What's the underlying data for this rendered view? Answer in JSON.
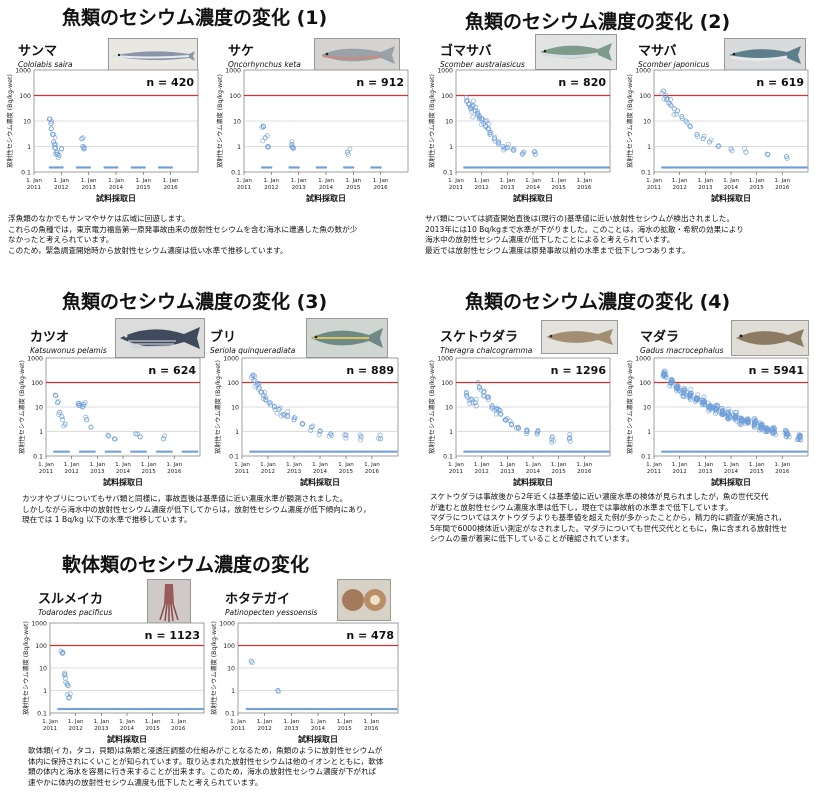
{
  "sections": [
    {
      "title": "魚類のセシウム濃度の変化 (1)",
      "desc": [
        "浮魚類のなかでもサンマやサケは広域に回遊します。",
        "これらの魚種では，東京電力福島第一原発事故由来の放射性セシウムを含む海水に遭遇した魚の数が少",
        "なかったと考えられています。",
        "このため，緊急調査開始時から放射性セシウム濃度は低い水準で推移しています。"
      ]
    },
    {
      "title": "魚類のセシウム濃度の変化 (2)",
      "desc": [
        "サバ類については調査開始直後は(現行の)基準値に近い放射性セシウムが検出されました。",
        "2013年には10 Bq/kgまで水準が下がりました。このことは，海水の拡散・希釈の効果により",
        "海水中の放射性セシウム濃度が低下したことによると考えられています。",
        "最近では放射性セシウム濃度は原発事故以前の水準まで低下しつつあります。"
      ]
    },
    {
      "title": "魚類のセシウム濃度の変化 (3)",
      "desc": [
        "カツオやブリについてもサバ類と同様に，事故直後は基準値に近い濃度水準が観測されました。",
        "しかしながら海水中の放射性セシウム濃度が低下してからは，放射性セシウム濃度が低下傾向にあり，",
        "現在では 1 Bq/kg 以下の水準で推移しています。"
      ]
    },
    {
      "title": "魚類のセシウム濃度の変化 (4)",
      "desc": [
        "スケトウダラは事故後から2年近くは基準値に近い濃度水準の検体が見られましたが，魚の世代交代",
        "が進むと放射性セシウム濃度水準は低下し，現在では事故前の水準まで低下しています。",
        "マダラについてはスケトウダラよりも基準値を超えた例が多かったことから，精力的に調査が実施され，",
        "5年間で6000検体近い測定がなされました。マダラについても世代交代とともに，魚に含まれる放射性セ",
        "シウムの量が着実に低下していることが確認されています。"
      ]
    },
    {
      "title": "軟体類のセシウム濃度の変化",
      "desc": [
        "軟体類(イカ，タコ，貝類)は魚類と浸透圧調整の仕組みがことなるため，魚類のように放射性セシウムが",
        "体内に保持されにくいことが知られています。取り込まれた放射性セシウムは他のイオンとともに，軟体",
        "類の体内と海水を容易に行き来することが出来ます。このため，海水の放射性セシウム濃度が下がれば",
        "速やかに体内の放射性セシウム濃度も低下したと考えられています。"
      ]
    }
  ],
  "species": [
    {
      "name": "サンマ",
      "sci": "Cololabis saira"
    },
    {
      "name": "サケ",
      "sci": "Oncorhynchus keta"
    },
    {
      "name": "ゴマサバ",
      "sci": "Scomber australasicus"
    },
    {
      "name": "マサバ",
      "sci": "Scomber japonicus"
    },
    {
      "name": "カツオ",
      "sci": "Katsuwonus pelamis"
    },
    {
      "name": "ブリ",
      "sci": "Seriola quinqueradiata"
    },
    {
      "name": "スケトウダラ",
      "sci": "Theragra chalcogramma"
    },
    {
      "name": "マダラ",
      "sci": "Gadus macrocephalus"
    },
    {
      "name": "スルメイカ",
      "sci": "Todarodes pacificus"
    },
    {
      "name": "ホタテガイ",
      "sci": "Patinopecten yessoensis"
    }
  ],
  "axes": {
    "ylabel": "放射性セシウム濃度 (Bq/kg-wet)",
    "xlabel": "試料採取日",
    "yticks": [
      "1000",
      "100",
      "10",
      "1",
      "0.1"
    ],
    "xticks": [
      "1. Jan 2011",
      "1. Jan 2012",
      "1. Jan 2013",
      "1. Jan 2014",
      "1. Jan 2015",
      "1. Jan 2016"
    ]
  },
  "colors": {
    "points": "#6f9fd8",
    "limit_line": "#d03030",
    "grid": "#d0d0d0"
  },
  "chart_data": [
    {
      "type": "scatter",
      "species": "サンマ",
      "n_label": "n = 420",
      "n": 420,
      "ylim": [
        0.1,
        1000
      ],
      "yscale": "log",
      "xlim": [
        "2011-01-01",
        "2017-01-01"
      ],
      "reference_line": 100,
      "points": [
        [
          "2011-08-01",
          12
        ],
        [
          "2011-08-15",
          8
        ],
        [
          "2011-08-20",
          5
        ],
        [
          "2011-09-05",
          3
        ],
        [
          "2011-09-20",
          1.5
        ],
        [
          "2011-10-01",
          1.2
        ],
        [
          "2011-10-15",
          0.9
        ],
        [
          "2011-11-01",
          0.6
        ],
        [
          "2011-11-10",
          0.5
        ],
        [
          "2011-12-01",
          0.45
        ],
        [
          "2012-01-05",
          0.8
        ],
        [
          "2012-10-01",
          2
        ],
        [
          "2012-10-15",
          1
        ],
        [
          "2012-11-01",
          0.8
        ]
      ],
      "detection_floor": {
        "value": 0.15,
        "ranges": [
          [
            "2011-08-01",
            "2012-02-01"
          ],
          [
            "2012-08-01",
            "2013-02-01"
          ],
          [
            "2013-08-01",
            "2014-02-01"
          ],
          [
            "2014-08-01",
            "2015-02-01"
          ],
          [
            "2015-08-01",
            "2016-02-01"
          ]
        ]
      }
    },
    {
      "type": "scatter",
      "species": "サケ",
      "n_label": "n = 912",
      "n": 912,
      "ylim": [
        0.1,
        1000
      ],
      "yscale": "log",
      "xlim": [
        "2011-01-01",
        "2017-01-01"
      ],
      "reference_line": 100,
      "points": [
        [
          "2011-09-20",
          6
        ],
        [
          "2011-10-10",
          2.2
        ],
        [
          "2011-11-15",
          1.0
        ],
        [
          "2012-10-01",
          1.2
        ],
        [
          "2012-10-20",
          0.9
        ],
        [
          "2014-10-15",
          0.6
        ]
      ],
      "detection_floor": {
        "value": 0.15,
        "ranges": [
          [
            "2011-09-01",
            "2012-01-15"
          ],
          [
            "2012-09-01",
            "2013-01-15"
          ],
          [
            "2013-09-01",
            "2014-01-15"
          ],
          [
            "2014-09-01",
            "2015-01-15"
          ],
          [
            "2015-09-01",
            "2016-01-15"
          ]
        ]
      }
    },
    {
      "type": "scatter",
      "species": "ゴマサバ",
      "n_label": "n = 820",
      "n": 820,
      "ylim": [
        0.1,
        1000
      ],
      "yscale": "log",
      "xlim": [
        "2011-01-01",
        "2017-01-01"
      ],
      "reference_line": 100,
      "points": [
        [
          "2011-06-01",
          60
        ],
        [
          "2011-07-01",
          45
        ],
        [
          "2011-08-01",
          30
        ],
        [
          "2011-09-01",
          40
        ],
        [
          "2011-10-01",
          25
        ],
        [
          "2011-11-01",
          20
        ],
        [
          "2011-12-01",
          15
        ],
        [
          "2012-01-01",
          12
        ],
        [
          "2012-02-01",
          8
        ],
        [
          "2012-03-01",
          6
        ],
        [
          "2012-04-01",
          5
        ],
        [
          "2012-05-01",
          3
        ],
        [
          "2012-07-01",
          2
        ],
        [
          "2012-09-01",
          1.5
        ],
        [
          "2012-11-01",
          1
        ],
        [
          "2013-01-01",
          0.9
        ],
        [
          "2013-04-01",
          0.7
        ],
        [
          "2013-08-01",
          0.5
        ],
        [
          "2014-02-01",
          0.5
        ]
      ],
      "detection_floor": {
        "value": 0.15,
        "ranges": [
          [
            "2011-05-01",
            "2016-12-15"
          ]
        ]
      }
    },
    {
      "type": "scatter",
      "species": "マサバ",
      "n_label": "n = 619",
      "n": 619,
      "ylim": [
        0.1,
        1000
      ],
      "yscale": "log",
      "xlim": [
        "2011-01-01",
        "2017-01-01"
      ],
      "reference_line": 100,
      "points": [
        [
          "2011-05-15",
          150
        ],
        [
          "2011-06-15",
          100
        ],
        [
          "2011-07-01",
          70
        ],
        [
          "2011-08-01",
          50
        ],
        [
          "2011-09-01",
          40
        ],
        [
          "2011-10-15",
          30
        ],
        [
          "2011-12-01",
          25
        ],
        [
          "2012-02-01",
          15
        ],
        [
          "2012-04-01",
          10
        ],
        [
          "2012-06-01",
          6
        ],
        [
          "2012-09-01",
          3
        ],
        [
          "2012-12-01",
          2
        ],
        [
          "2013-03-01",
          1.5
        ],
        [
          "2013-07-01",
          1
        ],
        [
          "2014-01-01",
          0.8
        ],
        [
          "2014-08-01",
          0.6
        ],
        [
          "2015-06-01",
          0.5
        ],
        [
          "2016-03-01",
          0.4
        ]
      ],
      "detection_floor": {
        "value": 0.15,
        "ranges": [
          [
            "2011-05-01",
            "2016-12-15"
          ]
        ]
      }
    },
    {
      "type": "scatter",
      "species": "カツオ",
      "n_label": "n = 624",
      "n": 624,
      "ylim": [
        0.1,
        1000
      ],
      "yscale": "log",
      "xlim": [
        "2011-01-01",
        "2017-01-01"
      ],
      "reference_line": 100,
      "points": [
        [
          "2011-05-15",
          30
        ],
        [
          "2011-06-15",
          15
        ],
        [
          "2011-07-15",
          6
        ],
        [
          "2011-08-15",
          4
        ],
        [
          "2011-10-01",
          2
        ],
        [
          "2012-04-15",
          14
        ],
        [
          "2012-05-01",
          12
        ],
        [
          "2012-06-01",
          10
        ],
        [
          "2012-06-20",
          13
        ],
        [
          "2012-08-01",
          3
        ],
        [
          "2012-10-01",
          1.5
        ],
        [
          "2013-06-01",
          0.7
        ],
        [
          "2013-09-01",
          0.5
        ],
        [
          "2014-07-01",
          0.8
        ],
        [
          "2014-09-01",
          0.6
        ],
        [
          "2015-08-01",
          0.5
        ]
      ],
      "detection_floor": {
        "value": 0.15,
        "ranges": [
          [
            "2011-05-01",
            "2011-12-01"
          ],
          [
            "2012-05-01",
            "2012-12-01"
          ],
          [
            "2013-05-01",
            "2013-12-01"
          ],
          [
            "2014-05-01",
            "2014-12-01"
          ],
          [
            "2015-05-01",
            "2015-12-01"
          ],
          [
            "2016-05-01",
            "2016-12-01"
          ]
        ]
      }
    },
    {
      "type": "scatter",
      "species": "ブリ",
      "n_label": "n = 889",
      "n": 889,
      "ylim": [
        0.1,
        1000
      ],
      "yscale": "log",
      "xlim": [
        "2011-01-01",
        "2017-01-01"
      ],
      "reference_line": 100,
      "points": [
        [
          "2011-06-01",
          200
        ],
        [
          "2011-07-01",
          120
        ],
        [
          "2011-08-01",
          80
        ],
        [
          "2011-09-01",
          60
        ],
        [
          "2011-10-01",
          40
        ],
        [
          "2011-11-01",
          30
        ],
        [
          "2011-12-01",
          20
        ],
        [
          "2012-02-01",
          15
        ],
        [
          "2012-04-01",
          10
        ],
        [
          "2012-06-01",
          8
        ],
        [
          "2012-08-01",
          5
        ],
        [
          "2012-10-01",
          4
        ],
        [
          "2013-01-01",
          3
        ],
        [
          "2013-05-01",
          2
        ],
        [
          "2013-09-01",
          1.5
        ],
        [
          "2014-01-01",
          1
        ],
        [
          "2014-06-01",
          0.8
        ],
        [
          "2015-01-01",
          0.7
        ],
        [
          "2015-08-01",
          0.6
        ],
        [
          "2016-05-01",
          0.5
        ]
      ],
      "detection_floor": {
        "value": 0.15,
        "ranges": [
          [
            "2011-05-01",
            "2016-12-15"
          ]
        ]
      }
    },
    {
      "type": "scatter",
      "species": "スケトウダラ",
      "n_label": "n = 1296",
      "n": 1296,
      "ylim": [
        0.1,
        1000
      ],
      "yscale": "log",
      "xlim": [
        "2011-01-01",
        "2017-01-01"
      ],
      "reference_line": 100,
      "points": [
        [
          "2011-06-01",
          30
        ],
        [
          "2011-08-01",
          20
        ],
        [
          "2011-10-01",
          15
        ],
        [
          "2011-12-01",
          60
        ],
        [
          "2012-02-01",
          40
        ],
        [
          "2012-04-01",
          25
        ],
        [
          "2012-06-01",
          10
        ],
        [
          "2012-08-01",
          8
        ],
        [
          "2012-10-01",
          5
        ],
        [
          "2012-12-01",
          3
        ],
        [
          "2013-03-01",
          2
        ],
        [
          "2013-06-01",
          1.5
        ],
        [
          "2013-10-01",
          1
        ],
        [
          "2014-03-01",
          0.8
        ],
        [
          "2014-10-01",
          0.6
        ],
        [
          "2015-06-01",
          0.5
        ]
      ],
      "detection_floor": {
        "value": 0.15,
        "ranges": [
          [
            "2011-05-01",
            "2016-12-15"
          ]
        ]
      }
    },
    {
      "type": "scatter",
      "species": "マダラ",
      "n_label": "n = 5941",
      "n": 5941,
      "ylim": [
        0.1,
        1000
      ],
      "yscale": "log",
      "xlim": [
        "2011-01-01",
        "2017-01-01"
      ],
      "reference_line": 100,
      "points": [
        [
          "2011-06-01",
          200
        ],
        [
          "2011-09-01",
          100
        ],
        [
          "2011-12-01",
          60
        ],
        [
          "2012-03-01",
          40
        ],
        [
          "2012-06-01",
          30
        ],
        [
          "2012-09-01",
          20
        ],
        [
          "2012-12-01",
          15
        ],
        [
          "2013-03-01",
          10
        ],
        [
          "2013-06-01",
          8
        ],
        [
          "2013-09-01",
          6
        ],
        [
          "2013-12-01",
          5
        ],
        [
          "2014-03-01",
          4
        ],
        [
          "2014-06-01",
          3
        ],
        [
          "2014-09-01",
          2.5
        ],
        [
          "2014-12-01",
          2
        ],
        [
          "2015-03-01",
          1.5
        ],
        [
          "2015-06-01",
          1.2
        ],
        [
          "2015-09-01",
          1
        ],
        [
          "2016-03-01",
          0.8
        ],
        [
          "2016-09-01",
          0.6
        ]
      ],
      "detection_floor": {
        "value": 0.15,
        "ranges": [
          [
            "2011-05-01",
            "2016-12-15"
          ]
        ]
      }
    },
    {
      "type": "scatter",
      "species": "スルメイカ",
      "n_label": "n = 1123",
      "n": 1123,
      "ylim": [
        0.1,
        1000
      ],
      "yscale": "log",
      "xlim": [
        "2011-01-01",
        "2017-01-01"
      ],
      "reference_line": 100,
      "points": [
        [
          "2011-07-01",
          50
        ],
        [
          "2011-08-01",
          5
        ],
        [
          "2011-09-01",
          2
        ],
        [
          "2011-10-01",
          0.5
        ]
      ],
      "detection_floor": {
        "value": 0.15,
        "ranges": [
          [
            "2011-05-01",
            "2016-12-15"
          ]
        ]
      }
    },
    {
      "type": "scatter",
      "species": "ホタテガイ",
      "n_label": "n = 478",
      "n": 478,
      "ylim": [
        0.1,
        1000
      ],
      "yscale": "log",
      "xlim": [
        "2011-01-01",
        "2017-01-01"
      ],
      "reference_line": 100,
      "points": [
        [
          "2011-07-01",
          20
        ],
        [
          "2012-07-01",
          1
        ]
      ],
      "detection_floor": {
        "value": 0.15,
        "ranges": [
          [
            "2011-05-01",
            "2016-12-15"
          ]
        ]
      }
    }
  ]
}
